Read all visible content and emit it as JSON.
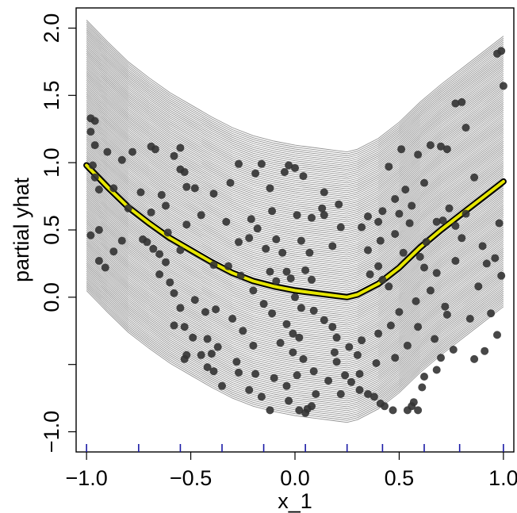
{
  "chart_data": {
    "type": "ice",
    "xlabel": "x_1",
    "ylabel": "partial yhat",
    "xlim": [
      -1.05,
      1.05
    ],
    "ylim": [
      -1.15,
      2.15
    ],
    "x_ticks": [
      -1.0,
      -0.5,
      0.0,
      0.5,
      1.0
    ],
    "x_tick_labels": [
      "−1.0",
      "−0.5",
      "0.0",
      "0.5",
      "1.0"
    ],
    "y_ticks": [
      -1.0,
      -0.5,
      0.0,
      0.5,
      1.0,
      1.5,
      2.0
    ],
    "y_tick_labels": [
      "−1.0",
      "",
      "0.0",
      "0.5",
      "1.0",
      "1.5",
      "2.0"
    ],
    "grid": false,
    "legend": "none",
    "colors": {
      "ice_curves": "#7f7f7f",
      "pdp_outline": "#000000",
      "pdp_line": "#e6e600",
      "points": "#333333",
      "rug": "#1a1aa6"
    },
    "pdp": {
      "name": "",
      "x": [
        -1.0,
        -0.9,
        -0.8,
        -0.7,
        -0.6,
        -0.5,
        -0.4,
        -0.3,
        -0.2,
        -0.1,
        0.0,
        0.1,
        0.2,
        0.25,
        0.3,
        0.4,
        0.5,
        0.6,
        0.7,
        0.8,
        0.9,
        1.0
      ],
      "y": [
        0.98,
        0.82,
        0.67,
        0.55,
        0.44,
        0.35,
        0.26,
        0.18,
        0.12,
        0.08,
        0.05,
        0.03,
        0.01,
        0.0,
        0.02,
        0.1,
        0.22,
        0.37,
        0.5,
        0.62,
        0.74,
        0.86
      ]
    },
    "ice_curves": {
      "count": 140,
      "min_offset": -0.93,
      "max_offset": 1.08,
      "base_x": [
        -1.0,
        -0.9,
        -0.8,
        -0.7,
        -0.6,
        -0.5,
        -0.4,
        -0.3,
        -0.2,
        -0.1,
        0.0,
        0.1,
        0.2,
        0.25,
        0.3,
        0.4,
        0.5,
        0.6,
        0.7,
        0.8,
        0.9,
        1.0
      ],
      "base_y": [
        0.98,
        0.82,
        0.67,
        0.55,
        0.44,
        0.35,
        0.26,
        0.18,
        0.12,
        0.08,
        0.05,
        0.03,
        0.01,
        0.0,
        0.02,
        0.1,
        0.22,
        0.37,
        0.5,
        0.62,
        0.74,
        0.86
      ]
    },
    "rug": [
      -1.0,
      -0.75,
      -0.55,
      -0.35,
      -0.15,
      0.05,
      0.25,
      0.42,
      0.62,
      0.79,
      1.0
    ],
    "points": [
      [
        -0.98,
        1.33
      ],
      [
        -0.96,
        1.31
      ],
      [
        -0.98,
        1.23
      ],
      [
        -0.96,
        1.13
      ],
      [
        -0.9,
        1.08
      ],
      [
        -0.83,
        1.02
      ],
      [
        -0.78,
        1.08
      ],
      [
        -0.97,
        0.98
      ],
      [
        -0.96,
        0.89
      ],
      [
        -0.94,
        0.8
      ],
      [
        -0.87,
        0.81
      ],
      [
        -0.98,
        0.46
      ],
      [
        -0.94,
        0.5
      ],
      [
        -0.94,
        0.27
      ],
      [
        -0.83,
        0.42
      ],
      [
        -0.73,
        0.43
      ],
      [
        -0.69,
        1.12
      ],
      [
        -0.67,
        1.1
      ],
      [
        -0.58,
        1.05
      ],
      [
        -0.55,
        1.11
      ],
      [
        -0.55,
        0.95
      ],
      [
        -0.53,
        0.93
      ],
      [
        -0.52,
        0.82
      ],
      [
        -0.64,
        0.76
      ],
      [
        -0.71,
        0.41
      ],
      [
        -0.68,
        0.36
      ],
      [
        -0.65,
        0.32
      ],
      [
        -0.62,
        0.26
      ],
      [
        -0.65,
        0.17
      ],
      [
        -0.6,
        0.11
      ],
      [
        -0.58,
        0.03
      ],
      [
        -0.55,
        -0.08
      ],
      [
        -0.58,
        -0.21
      ],
      [
        -0.53,
        -0.22
      ],
      [
        -0.49,
        -0.3
      ],
      [
        -0.42,
        -0.31
      ],
      [
        -0.37,
        -0.37
      ],
      [
        -0.4,
        -0.42
      ],
      [
        -0.45,
        -0.43
      ],
      [
        -0.52,
        -0.43
      ],
      [
        -0.53,
        -0.46
      ],
      [
        -0.42,
        -0.52
      ],
      [
        -0.39,
        -0.55
      ],
      [
        -0.27,
        -0.56
      ],
      [
        -0.35,
        -0.66
      ],
      [
        -0.22,
        -0.69
      ],
      [
        -0.16,
        -0.74
      ],
      [
        -0.12,
        -0.84
      ],
      [
        -0.03,
        -0.77
      ],
      [
        0.02,
        -0.84
      ],
      [
        0.05,
        -0.86
      ],
      [
        0.06,
        -0.83
      ],
      [
        0.08,
        -0.81
      ],
      [
        -0.18,
        0.51
      ],
      [
        -0.21,
        0.58
      ],
      [
        -0.14,
        0.36
      ],
      [
        -0.09,
        0.43
      ],
      [
        -0.22,
        0.44
      ],
      [
        -0.11,
        0.64
      ],
      [
        -0.19,
        0.92
      ],
      [
        -0.27,
        0.99
      ],
      [
        -0.16,
        0.99
      ],
      [
        -0.03,
        0.98
      ],
      [
        0.0,
        0.96
      ],
      [
        -0.05,
        0.93
      ],
      [
        0.04,
        0.9
      ],
      [
        -0.12,
        0.81
      ],
      [
        -0.31,
        0.85
      ],
      [
        -0.39,
        0.77
      ],
      [
        -0.48,
        0.81
      ],
      [
        -0.39,
        0.24
      ],
      [
        -0.32,
        0.23
      ],
      [
        -0.26,
        0.16
      ],
      [
        -0.2,
        0.05
      ],
      [
        -0.15,
        -0.05
      ],
      [
        -0.11,
        -0.12
      ],
      [
        -0.04,
        -0.2
      ],
      [
        -0.01,
        -0.27
      ],
      [
        0.02,
        -0.3
      ],
      [
        -0.07,
        -0.34
      ],
      [
        -0.01,
        -0.41
      ],
      [
        0.04,
        -0.46
      ],
      [
        0.09,
        -0.55
      ],
      [
        0.19,
        -0.41
      ],
      [
        0.2,
        -0.48
      ],
      [
        0.24,
        -0.58
      ],
      [
        0.27,
        -0.63
      ],
      [
        0.31,
        -0.69
      ],
      [
        0.35,
        -0.72
      ],
      [
        0.38,
        -0.74
      ],
      [
        0.41,
        -0.79
      ],
      [
        0.43,
        -0.81
      ],
      [
        0.47,
        -0.84
      ],
      [
        0.54,
        -0.84
      ],
      [
        0.56,
        -0.81
      ],
      [
        0.59,
        -0.84
      ],
      [
        0.57,
        -0.78
      ],
      [
        0.61,
        -0.67
      ],
      [
        0.62,
        -0.59
      ],
      [
        0.68,
        -0.54
      ],
      [
        0.7,
        -0.45
      ],
      [
        0.76,
        -0.39
      ],
      [
        0.86,
        -0.46
      ],
      [
        0.91,
        -0.4
      ],
      [
        0.97,
        -0.28
      ],
      [
        0.94,
        -0.12
      ],
      [
        0.99,
        0.16
      ],
      [
        0.96,
        0.29
      ],
      [
        0.98,
        0.55
      ],
      [
        1.0,
        1.57
      ],
      [
        0.97,
        1.81
      ],
      [
        0.99,
        1.83
      ],
      [
        0.77,
        1.44
      ],
      [
        0.82,
        1.26
      ],
      [
        0.8,
        1.45
      ],
      [
        0.7,
        1.12
      ],
      [
        0.73,
        1.1
      ],
      [
        0.65,
        1.13
      ],
      [
        0.59,
        1.06
      ],
      [
        0.51,
        1.1
      ],
      [
        0.45,
        0.97
      ],
      [
        0.53,
        0.8
      ],
      [
        0.62,
        0.85
      ],
      [
        0.56,
        0.68
      ],
      [
        0.5,
        0.62
      ],
      [
        0.42,
        0.64
      ],
      [
        0.35,
        0.6
      ],
      [
        0.32,
        0.52
      ],
      [
        0.4,
        0.56
      ],
      [
        0.48,
        0.47
      ],
      [
        0.52,
        0.33
      ],
      [
        0.35,
        0.35
      ],
      [
        0.36,
        0.17
      ],
      [
        0.4,
        0.23
      ],
      [
        0.42,
        0.13
      ],
      [
        0.45,
        0.08
      ],
      [
        0.6,
        0.3
      ],
      [
        0.63,
        0.41
      ],
      [
        0.68,
        0.56
      ],
      [
        0.74,
        0.66
      ],
      [
        0.71,
        0.57
      ],
      [
        0.77,
        0.53
      ],
      [
        0.82,
        0.62
      ],
      [
        0.86,
        0.89
      ],
      [
        0.9,
        0.38
      ],
      [
        0.92,
        0.25
      ],
      [
        0.8,
        0.44
      ],
      [
        0.68,
        0.18
      ],
      [
        0.65,
        0.05
      ],
      [
        0.58,
        -0.03
      ],
      [
        0.5,
        -0.11
      ],
      [
        0.46,
        -0.21
      ],
      [
        0.4,
        -0.27
      ],
      [
        0.32,
        -0.32
      ],
      [
        0.3,
        -0.43
      ],
      [
        0.26,
        -0.37
      ],
      [
        0.2,
        -0.3
      ],
      [
        0.18,
        -0.22
      ],
      [
        0.14,
        -0.17
      ],
      [
        0.09,
        -0.1
      ],
      [
        0.03,
        -0.08
      ],
      [
        0.0,
        0.0
      ],
      [
        0.05,
        0.2
      ],
      [
        0.07,
        0.33
      ],
      [
        0.03,
        0.42
      ],
      [
        0.01,
        0.61
      ],
      [
        0.08,
        0.59
      ],
      [
        0.13,
        0.66
      ],
      [
        0.14,
        0.61
      ],
      [
        0.21,
        0.69
      ],
      [
        0.14,
        0.78
      ],
      [
        0.22,
        0.52
      ],
      [
        0.18,
        0.38
      ],
      [
        0.08,
        0.13
      ],
      [
        -0.06,
        0.33
      ],
      [
        -0.04,
        0.19
      ],
      [
        -0.02,
        0.14
      ],
      [
        -0.09,
        0.12
      ],
      [
        -0.12,
        0.19
      ],
      [
        -0.27,
        0.41
      ],
      [
        -0.33,
        0.56
      ],
      [
        -0.45,
        0.61
      ],
      [
        -0.52,
        0.54
      ],
      [
        -0.61,
        0.48
      ],
      [
        -0.74,
        0.78
      ],
      [
        -0.69,
        0.63
      ],
      [
        -0.8,
        0.66
      ],
      [
        -0.87,
        0.34
      ],
      [
        -0.91,
        0.22
      ],
      [
        -0.62,
        0.68
      ],
      [
        -0.55,
        0.35
      ],
      [
        -0.48,
        -0.02
      ],
      [
        -0.43,
        -0.11
      ],
      [
        -0.38,
        -0.09
      ],
      [
        -0.3,
        -0.16
      ],
      [
        -0.25,
        -0.25
      ],
      [
        -0.2,
        -0.36
      ],
      [
        -0.28,
        -0.48
      ],
      [
        -0.19,
        -0.57
      ],
      [
        -0.1,
        -0.6
      ],
      [
        -0.04,
        -0.66
      ],
      [
        0.01,
        -0.58
      ],
      [
        0.1,
        -0.72
      ],
      [
        0.16,
        -0.62
      ],
      [
        0.22,
        -0.72
      ],
      [
        0.31,
        -0.57
      ],
      [
        0.39,
        -0.49
      ],
      [
        0.48,
        -0.45
      ],
      [
        0.54,
        -0.36
      ],
      [
        0.59,
        -0.22
      ],
      [
        0.67,
        -0.31
      ],
      [
        0.73,
        -0.13
      ],
      [
        0.84,
        -0.16
      ],
      [
        0.88,
        0.08
      ],
      [
        0.77,
        0.27
      ],
      [
        0.72,
        -0.07
      ],
      [
        0.62,
        0.22
      ],
      [
        0.55,
        0.55
      ],
      [
        0.48,
        0.73
      ],
      [
        0.41,
        0.42
      ]
    ]
  }
}
